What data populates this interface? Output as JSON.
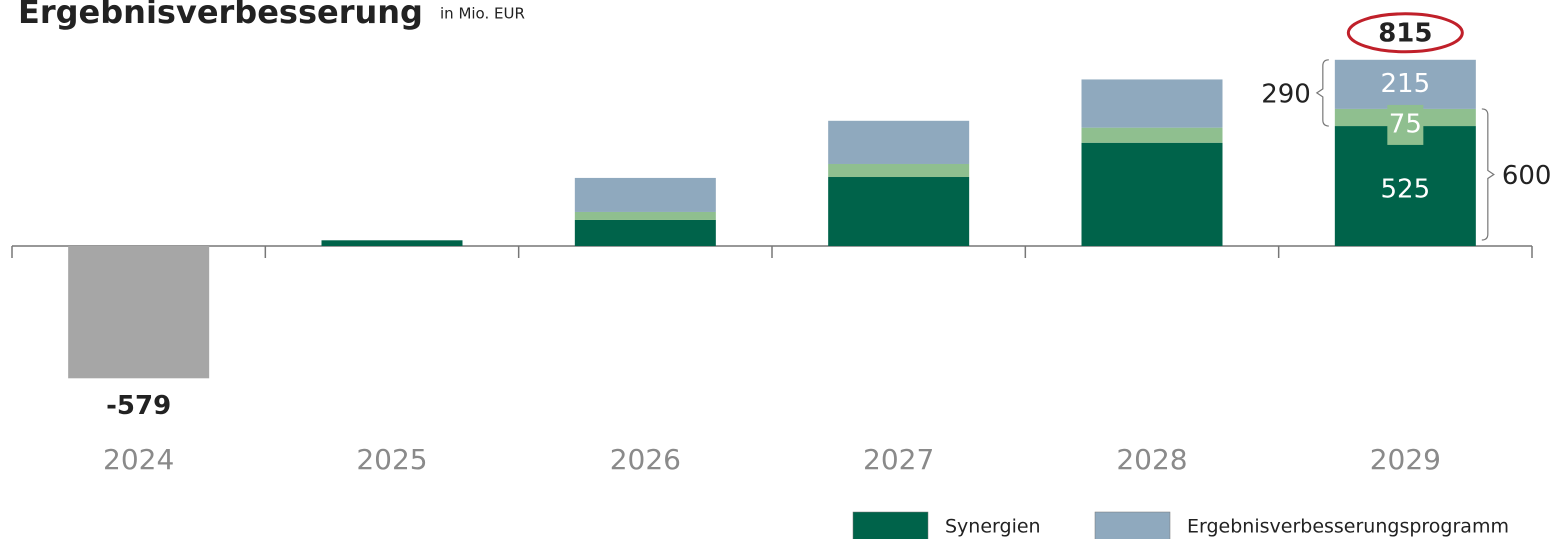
{
  "chart_data": {
    "type": "stacked_bar",
    "title": "Ergebnisverbesserung",
    "subtitle": "in Mio. EUR",
    "categories": [
      "2024",
      "2025",
      "2026",
      "2027",
      "2028",
      "2029"
    ],
    "series": [
      {
        "name": "Synergien",
        "color": "#00634a",
        "values": [
          null,
          25,
          114,
          302,
          452,
          525
        ]
      },
      {
        "color": "#8fbf8f",
        "values": [
          null,
          null,
          35,
          57,
          66,
          75
        ]
      },
      {
        "name": "Ergebnisverbesserungsprogramm",
        "color": "#8fa9be",
        "values": [
          null,
          null,
          149,
          189,
          211,
          215
        ]
      },
      {
        "color": "#a6a6a6",
        "values": [
          -579,
          null,
          null,
          null,
          null,
          null
        ]
      }
    ],
    "annotations": {
      "total": 815,
      "upper_brace": 290,
      "lower_brace": 600
    },
    "ylim": [
      -600,
      850
    ]
  }
}
